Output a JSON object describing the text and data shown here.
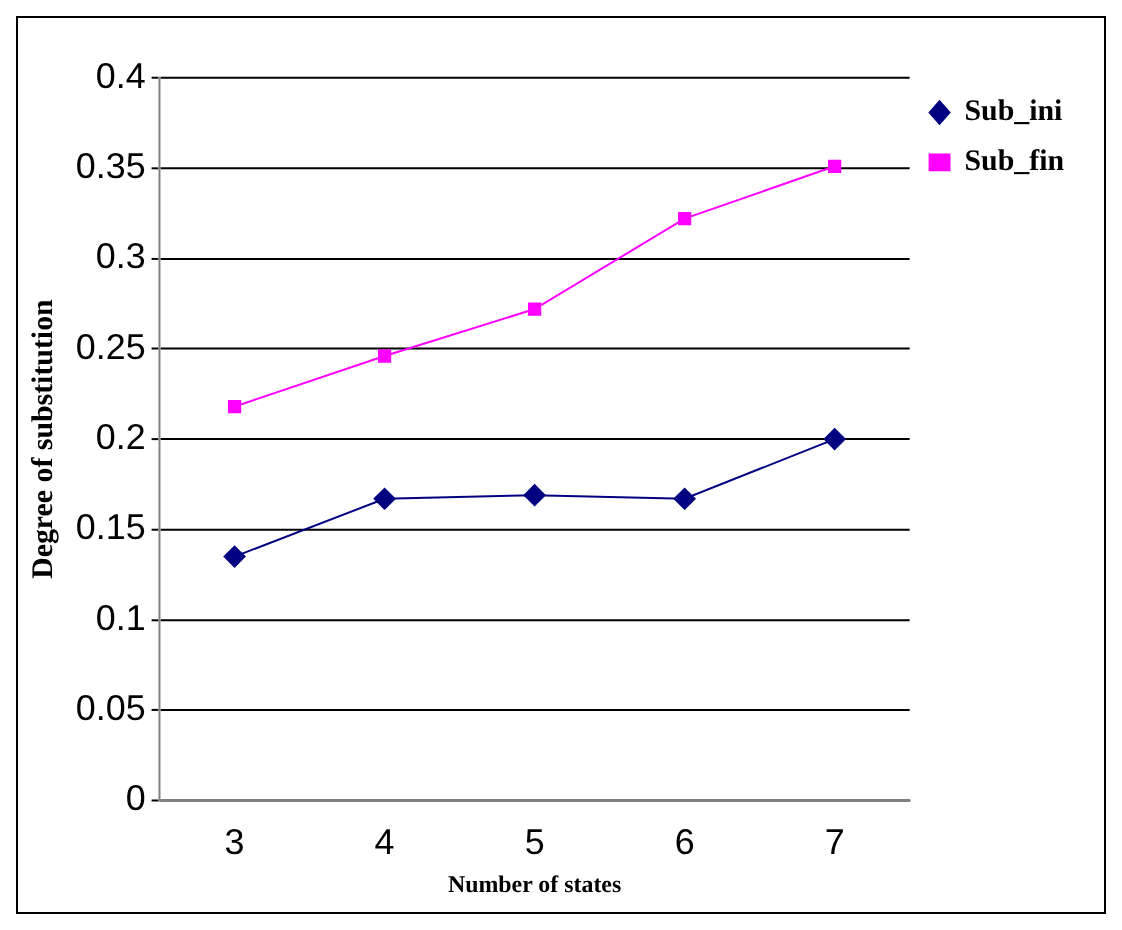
{
  "chart_data": {
    "type": "line",
    "xlabel": "Number of states",
    "ylabel": "Degree of substitution",
    "categories": [
      "3",
      "4",
      "5",
      "6",
      "7"
    ],
    "series": [
      {
        "name": "Sub_ini",
        "color": "#000080",
        "marker": "diamond",
        "values": [
          0.135,
          0.167,
          0.169,
          0.167,
          0.2
        ]
      },
      {
        "name": "Sub_fin",
        "color": "#ff00ff",
        "marker": "square",
        "values": [
          0.218,
          0.246,
          0.272,
          0.322,
          0.351
        ]
      }
    ],
    "ylim": [
      0,
      0.4
    ],
    "yticks": [
      0,
      0.05,
      0.1,
      0.15,
      0.2,
      0.25,
      0.3,
      0.35,
      0.4
    ],
    "grid": "y",
    "legend": "top right"
  }
}
